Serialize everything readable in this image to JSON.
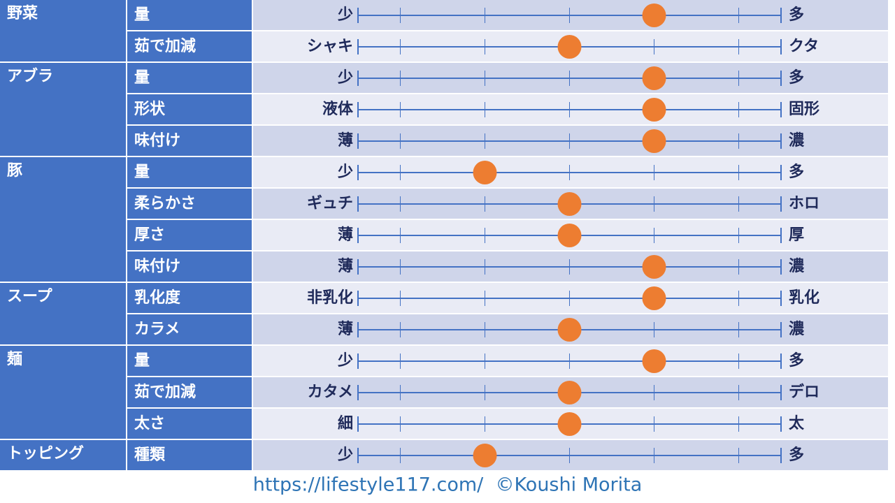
{
  "chart_data": {
    "type": "slider-table",
    "xlim": [
      0.5,
      5.5
    ],
    "xticks": [
      1,
      2,
      3,
      4,
      5
    ],
    "groups": [
      {
        "name": "野菜",
        "items": [
          {
            "name": "量",
            "left": "少",
            "right": "多",
            "value": 4
          },
          {
            "name": "茹で加減",
            "left": "シャキ",
            "right": "クタ",
            "value": 3
          }
        ]
      },
      {
        "name": "アブラ",
        "items": [
          {
            "name": "量",
            "left": "少",
            "right": "多",
            "value": 4
          },
          {
            "name": "形状",
            "left": "液体",
            "right": "固形",
            "value": 4
          },
          {
            "name": "味付け",
            "left": "薄",
            "right": "濃",
            "value": 4
          }
        ]
      },
      {
        "name": "豚",
        "items": [
          {
            "name": "量",
            "left": "少",
            "right": "多",
            "value": 2
          },
          {
            "name": "柔らかさ",
            "left": "ギュチ",
            "right": "ホロ",
            "value": 3
          },
          {
            "name": "厚さ",
            "left": "薄",
            "right": "厚",
            "value": 3
          },
          {
            "name": "味付け",
            "left": "薄",
            "right": "濃",
            "value": 4
          }
        ]
      },
      {
        "name": "スープ",
        "items": [
          {
            "name": "乳化度",
            "left": "非乳化",
            "right": "乳化",
            "value": 4
          },
          {
            "name": "カラメ",
            "left": "薄",
            "right": "濃",
            "value": 3
          }
        ]
      },
      {
        "name": "麺",
        "items": [
          {
            "name": "量",
            "left": "少",
            "right": "多",
            "value": 4
          },
          {
            "name": "茹で加減",
            "left": "カタメ",
            "right": "デロ",
            "value": 3
          },
          {
            "name": "太さ",
            "left": "細",
            "right": "太",
            "value": 3
          }
        ]
      },
      {
        "name": "トッピング",
        "items": [
          {
            "name": "種類",
            "left": "少",
            "right": "多",
            "value": 2
          }
        ]
      }
    ],
    "footer": "https://lifestyle117.com/  ©Koushi Morita"
  }
}
